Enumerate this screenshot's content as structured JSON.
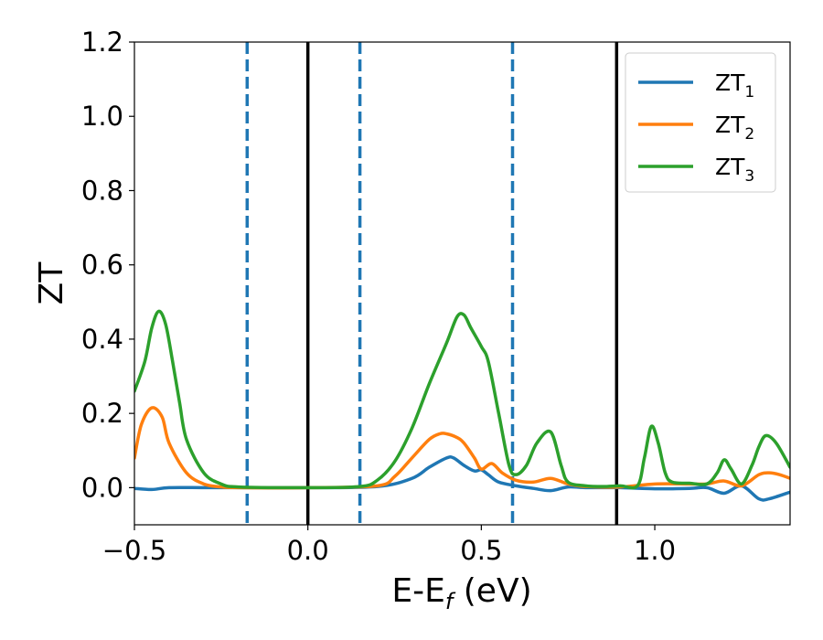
{
  "chart_data": {
    "type": "line",
    "xlabel": "E-E",
    "xlabel_sub": "f",
    "xlabel_suffix": " (eV)",
    "ylabel": "ZT",
    "xlim": [
      -0.5,
      1.39
    ],
    "ylim": [
      -0.1,
      1.2
    ],
    "xticks": [
      -0.5,
      0.0,
      0.5,
      1.0
    ],
    "xtick_labels": [
      "−0.5",
      "0.0",
      "0.5",
      "1.0"
    ],
    "yticks": [
      0.0,
      0.2,
      0.4,
      0.6,
      0.8,
      1.0,
      1.2
    ],
    "ytick_labels": [
      "0.0",
      "0.2",
      "0.4",
      "0.6",
      "0.8",
      "1.0",
      "1.2"
    ],
    "grid": false,
    "legend_position": "top-right",
    "vertical_lines_solid": [
      0.0,
      0.89
    ],
    "vertical_lines_dashed": [
      -0.175,
      0.15,
      0.59
    ],
    "colors": {
      "ZT1": "#1f77b4",
      "ZT2": "#ff7f0e",
      "ZT3": "#2ca02c",
      "solid_line": "#000000",
      "dashed_line": "#1f77b4"
    },
    "series": [
      {
        "name": "ZT",
        "name_sub": "1",
        "color": "#1f77b4",
        "x": [
          -0.5,
          -0.45,
          -0.4,
          -0.3,
          -0.2,
          0.0,
          0.2,
          0.3,
          0.35,
          0.4,
          0.42,
          0.45,
          0.48,
          0.5,
          0.52,
          0.55,
          0.6,
          0.65,
          0.7,
          0.75,
          0.8,
          0.9,
          1.0,
          1.1,
          1.15,
          1.2,
          1.25,
          1.3,
          1.33,
          1.39
        ],
        "y": [
          -0.002,
          -0.005,
          0.0,
          0.0,
          0.0,
          0.0,
          0.003,
          0.025,
          0.055,
          0.08,
          0.08,
          0.06,
          0.045,
          0.048,
          0.035,
          0.015,
          0.005,
          -0.002,
          -0.008,
          0.002,
          0.0,
          0.0,
          -0.003,
          -0.002,
          0.0,
          -0.015,
          0.005,
          -0.03,
          -0.03,
          -0.012
        ]
      },
      {
        "name": "ZT",
        "name_sub": "2",
        "color": "#ff7f0e",
        "x": [
          -0.5,
          -0.48,
          -0.45,
          -0.42,
          -0.4,
          -0.35,
          -0.3,
          -0.25,
          -0.2,
          0.0,
          0.2,
          0.25,
          0.3,
          0.35,
          0.38,
          0.4,
          0.43,
          0.45,
          0.48,
          0.5,
          0.53,
          0.56,
          0.6,
          0.65,
          0.7,
          0.75,
          0.8,
          0.9,
          1.0,
          1.1,
          1.15,
          1.2,
          1.25,
          1.3,
          1.33,
          1.36,
          1.39
        ],
        "y": [
          0.08,
          0.17,
          0.215,
          0.19,
          0.12,
          0.04,
          0.01,
          0.002,
          0.0,
          0.0,
          0.005,
          0.03,
          0.08,
          0.13,
          0.145,
          0.145,
          0.135,
          0.12,
          0.08,
          0.05,
          0.065,
          0.04,
          0.02,
          0.015,
          0.025,
          0.01,
          0.003,
          0.002,
          0.01,
          0.01,
          0.01,
          0.018,
          0.005,
          0.035,
          0.04,
          0.035,
          0.025
        ]
      },
      {
        "name": "ZT",
        "name_sub": "3",
        "color": "#2ca02c",
        "x": [
          -0.5,
          -0.47,
          -0.45,
          -0.43,
          -0.41,
          -0.39,
          -0.37,
          -0.35,
          -0.3,
          -0.25,
          -0.2,
          0.0,
          0.15,
          0.2,
          0.25,
          0.3,
          0.35,
          0.4,
          0.43,
          0.45,
          0.47,
          0.5,
          0.52,
          0.55,
          0.58,
          0.6,
          0.63,
          0.66,
          0.7,
          0.73,
          0.75,
          0.8,
          0.85,
          0.9,
          0.95,
          0.97,
          0.99,
          1.01,
          1.03,
          1.05,
          1.1,
          1.15,
          1.18,
          1.2,
          1.22,
          1.25,
          1.28,
          1.3,
          1.32,
          1.35,
          1.39
        ],
        "y": [
          0.26,
          0.34,
          0.43,
          0.475,
          0.44,
          0.34,
          0.23,
          0.13,
          0.04,
          0.01,
          0.002,
          0.0,
          0.003,
          0.02,
          0.07,
          0.16,
          0.28,
          0.39,
          0.46,
          0.465,
          0.43,
          0.38,
          0.34,
          0.2,
          0.06,
          0.035,
          0.06,
          0.12,
          0.15,
          0.06,
          0.015,
          0.005,
          0.003,
          0.005,
          0.005,
          0.08,
          0.165,
          0.12,
          0.04,
          0.015,
          0.012,
          0.01,
          0.04,
          0.075,
          0.05,
          0.01,
          0.06,
          0.11,
          0.14,
          0.12,
          0.055
        ]
      }
    ]
  }
}
